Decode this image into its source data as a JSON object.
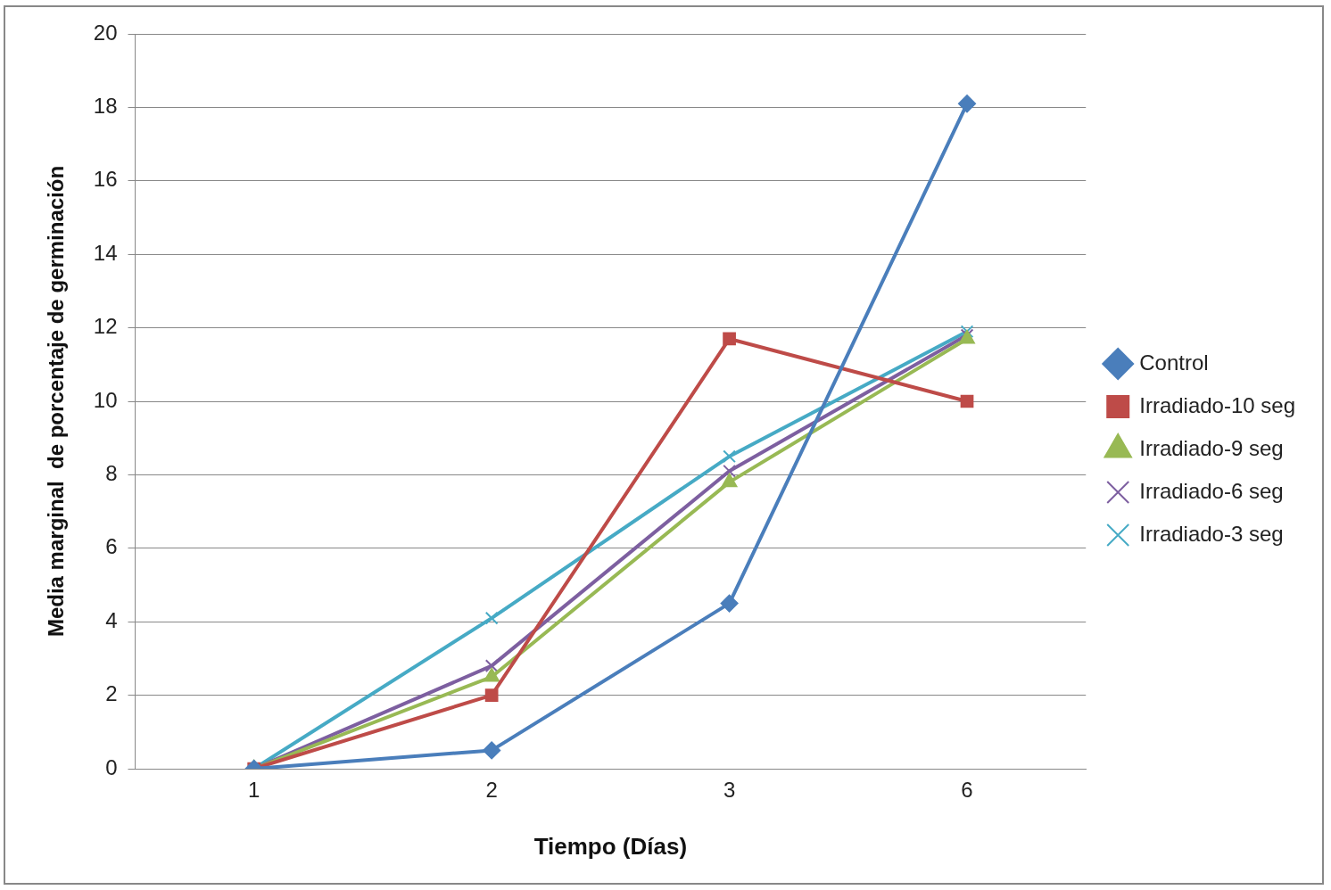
{
  "chart_data": {
    "type": "line",
    "xlabel": "Tiempo (Días)",
    "ylabel": "Media marginal  de porcentaje de germinación",
    "categories": [
      "1",
      "2",
      "3",
      "6"
    ],
    "series": [
      {
        "name": "Control",
        "color": "#4a7ebb",
        "marker": "diamond",
        "values": [
          0,
          0.5,
          4.5,
          18.1
        ]
      },
      {
        "name": "Irradiado-10 seg",
        "color": "#be4b48",
        "marker": "square",
        "values": [
          0,
          2,
          11.7,
          10
        ]
      },
      {
        "name": "Irradiado-9 seg",
        "color": "#98b954",
        "marker": "triangle",
        "values": [
          0,
          2.5,
          7.8,
          11.7
        ]
      },
      {
        "name": "Irradiado-6 seg",
        "color": "#7d5fa0",
        "marker": "cross",
        "values": [
          0,
          2.8,
          8.1,
          11.8
        ]
      },
      {
        "name": "Irradiado-3 seg",
        "color": "#46aac5",
        "marker": "cross",
        "values": [
          0,
          4.1,
          8.5,
          11.9
        ]
      }
    ],
    "ylim": [
      0,
      20
    ],
    "yticks": [
      0,
      2,
      4,
      6,
      8,
      10,
      12,
      14,
      16,
      18,
      20
    ],
    "grid": "y",
    "legend": "right",
    "line_style": "solid"
  }
}
